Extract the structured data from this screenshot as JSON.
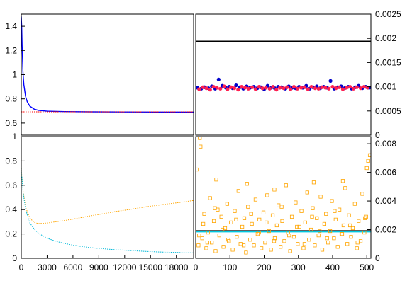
{
  "chart_data": [
    {
      "id": "top-left",
      "type": "line",
      "title": "",
      "xlabel": "",
      "ylabel": "",
      "xlim": [
        0,
        20000
      ],
      "ylim": [
        0.5,
        1.5
      ],
      "yticks": [
        0.6,
        0.8,
        1,
        1.2,
        1.4
      ],
      "ytick_labels": [
        "0.6",
        "0.8",
        "1",
        "1.2",
        "1.4"
      ],
      "grid": false,
      "series": [
        {
          "style": "solid",
          "color": "#0000ff",
          "x": [
            0,
            50,
            100,
            200,
            300,
            500,
            700,
            1000,
            1500,
            2000,
            3000,
            5000,
            8000,
            12000,
            16000,
            20000
          ],
          "y": [
            1.48,
            1.4,
            1.24,
            1.02,
            0.92,
            0.82,
            0.775,
            0.74,
            0.715,
            0.705,
            0.698,
            0.695,
            0.693,
            0.692,
            0.691,
            0.691
          ]
        },
        {
          "style": "dotted",
          "color": "#ff0000",
          "x": [
            0,
            20000
          ],
          "y": [
            0.693,
            0.693
          ]
        }
      ]
    },
    {
      "id": "top-right",
      "type": "scatter",
      "title": "",
      "xlabel": "",
      "ylabel": "",
      "xlim": [
        0,
        512
      ],
      "ylim": [
        0,
        0.0025
      ],
      "yticks": [
        0,
        0.0005,
        0.001,
        0.0015,
        0.002,
        0.0025
      ],
      "ytick_labels": [
        "0",
        "0.0005",
        "0.001",
        "0.0015",
        "0.002",
        "0.0025"
      ],
      "grid": false,
      "hline": {
        "y": 0.00194,
        "color": "#000000"
      },
      "series": [
        {
          "marker": "filled-circle",
          "color": "#0000cc",
          "x": [
            5,
            16,
            26,
            37,
            47,
            57,
            67,
            78,
            88,
            98,
            108,
            118,
            129,
            139,
            149,
            159,
            170,
            180,
            190,
            200,
            210,
            221,
            231,
            241,
            251,
            262,
            272,
            282,
            292,
            302,
            313,
            323,
            333,
            343,
            354,
            364,
            374,
            384,
            394,
            405,
            415,
            425,
            435,
            446,
            456,
            466,
            476,
            487,
            497,
            507
          ],
          "y": [
            0.00098,
            0.00096,
            0.00099,
            0.00097,
            0.00101,
            0.00096,
            0.00115,
            0.00102,
            0.00098,
            0.001,
            0.00097,
            0.00103,
            0.00099,
            0.00096,
            0.00101,
            0.00098,
            0.001,
            0.00097,
            0.00099,
            0.00095,
            0.00102,
            0.00098,
            0.00097,
            0.001,
            0.00099,
            0.00096,
            0.00101,
            0.00098,
            0.00097,
            0.001,
            0.00098,
            0.00102,
            0.00096,
            0.00099,
            0.00101,
            0.00097,
            0.001,
            0.00098,
            0.00112,
            0.00096,
            0.00099,
            0.00101,
            0.00097,
            0.001,
            0.00096,
            0.00099,
            0.00102,
            0.00097,
            0.001,
            0.00098
          ]
        },
        {
          "marker": "filled-circle",
          "color": "#ff2050",
          "x": [
            10,
            21,
            31,
            42,
            52,
            62,
            72,
            83,
            93,
            103,
            113,
            124,
            134,
            144,
            154,
            165,
            175,
            185,
            195,
            205,
            216,
            226,
            236,
            246,
            257,
            267,
            277,
            287,
            297,
            308,
            318,
            328,
            338,
            349,
            359,
            369,
            379,
            389,
            400,
            410,
            420,
            430,
            441,
            451,
            461,
            471,
            482,
            492,
            502
          ],
          "y": [
            0.00095,
            0.00099,
            0.00097,
            0.00094,
            0.001,
            0.00098,
            0.00096,
            0.00101,
            0.00095,
            0.00099,
            0.00097,
            0.00094,
            0.001,
            0.00098,
            0.00096,
            0.00099,
            0.00095,
            0.001,
            0.00097,
            0.00098,
            0.00096,
            0.001,
            0.00094,
            0.00098,
            0.00097,
            0.00099,
            0.00095,
            0.001,
            0.00096,
            0.00098,
            0.00099,
            0.00095,
            0.001,
            0.00097,
            0.00096,
            0.00099,
            0.00098,
            0.00096,
            0.001,
            0.00097,
            0.00099,
            0.00095,
            0.00098,
            0.001,
            0.00096,
            0.00099,
            0.00097,
            0.001,
            0.00098
          ]
        }
      ]
    },
    {
      "id": "bottom-left",
      "type": "line",
      "title": "",
      "xlabel": "",
      "ylabel": "",
      "xlim": [
        0,
        20000
      ],
      "ylim": [
        0,
        1
      ],
      "xticks": [
        0,
        3000,
        6000,
        9000,
        12000,
        15000,
        18000
      ],
      "xtick_labels": [
        "0",
        "3000",
        "6000",
        "9000",
        "12000",
        "15000",
        "18000"
      ],
      "yticks": [
        0,
        0.2,
        0.4,
        0.6,
        0.8,
        1
      ],
      "ytick_labels": [
        "0",
        "0.2",
        "0.4",
        "0.6",
        "0.8",
        "1"
      ],
      "grid": false,
      "series": [
        {
          "style": "dotted",
          "color": "#ffa500",
          "x": [
            0,
            200,
            500,
            1000,
            1500,
            2000,
            3000,
            4000,
            5000,
            6000,
            7000,
            8000,
            9000,
            10000,
            11000,
            12000,
            13000,
            14000,
            15000,
            16000,
            17000,
            18000,
            19000,
            20000
          ],
          "y": [
            0.74,
            0.56,
            0.42,
            0.33,
            0.295,
            0.285,
            0.29,
            0.3,
            0.31,
            0.322,
            0.335,
            0.348,
            0.36,
            0.372,
            0.385,
            0.395,
            0.405,
            0.418,
            0.428,
            0.437,
            0.447,
            0.455,
            0.465,
            0.475
          ]
        },
        {
          "style": "dotted",
          "color": "#00b8d8",
          "x": [
            0,
            200,
            500,
            1000,
            1500,
            2000,
            3000,
            4000,
            5000,
            6000,
            7000,
            8000,
            9000,
            10000,
            11000,
            12000,
            13000,
            14000,
            15000,
            16000,
            17000,
            18000,
            19000,
            20000
          ],
          "y": [
            0.74,
            0.55,
            0.4,
            0.29,
            0.24,
            0.205,
            0.165,
            0.14,
            0.122,
            0.108,
            0.097,
            0.088,
            0.081,
            0.075,
            0.07,
            0.066,
            0.062,
            0.058,
            0.055,
            0.052,
            0.05,
            0.048,
            0.046,
            0.044
          ]
        }
      ]
    },
    {
      "id": "bottom-right",
      "type": "scatter",
      "title": "",
      "xlabel": "",
      "ylabel": "",
      "xlim": [
        0,
        512
      ],
      "ylim": [
        0,
        0.0085
      ],
      "xticks": [
        0,
        100,
        200,
        300,
        400,
        500
      ],
      "xtick_labels": [
        "0",
        "100",
        "200",
        "300",
        "400",
        "500"
      ],
      "yticks": [
        0,
        0.002,
        0.004,
        0.006,
        0.008
      ],
      "ytick_labels": [
        "0",
        "0.002",
        "0.004",
        "0.006",
        "0.008"
      ],
      "grid": false,
      "hlines": [
        {
          "y": 0.00192,
          "color": "#000000"
        },
        {
          "y": 0.00185,
          "color": "#00c8e0"
        }
      ],
      "series": [
        {
          "marker": "open-square",
          "color": "#ffa500",
          "x": [
            3,
            8,
            14,
            19,
            25,
            31,
            36,
            42,
            47,
            53,
            58,
            64,
            69,
            75,
            81,
            86,
            92,
            97,
            103,
            108,
            114,
            120,
            125,
            131,
            136,
            142,
            147,
            153,
            159,
            164,
            170,
            175,
            181,
            186,
            192,
            198,
            203,
            209,
            214,
            220,
            225,
            231,
            237,
            242,
            248,
            253,
            259,
            264,
            270,
            276,
            281,
            287,
            292,
            298,
            303,
            309,
            315,
            320,
            326,
            331,
            337,
            342,
            348,
            354,
            359,
            365,
            370,
            376,
            381,
            387,
            393,
            398,
            404,
            409,
            415,
            420,
            426,
            432,
            437,
            443,
            448,
            454,
            459,
            465,
            471,
            476,
            482,
            487,
            493,
            498,
            504,
            509,
            10,
            22,
            34,
            56,
            78,
            95,
            118,
            140,
            162,
            185,
            207,
            229,
            251,
            273,
            296,
            318,
            340,
            362,
            384,
            406,
            428,
            451,
            473,
            495,
            12,
            60,
            150,
            230,
            345,
            430,
            500
          ],
          "y": [
            0.0062,
            0.0009,
            0.0078,
            0.0014,
            0.0031,
            0.0007,
            0.0018,
            0.0042,
            0.0011,
            0.0026,
            0.0005,
            0.0034,
            0.0016,
            0.0029,
            0.0008,
            0.0021,
            0.0038,
            0.0012,
            0.0025,
            0.0006,
            0.0033,
            0.0015,
            0.0047,
            0.001,
            0.0022,
            0.0028,
            0.0004,
            0.0036,
            0.0013,
            0.0024,
            0.0009,
            0.0041,
            0.0017,
            0.0027,
            0.0007,
            0.0032,
            0.0011,
            0.0044,
            0.0019,
            0.0006,
            0.003,
            0.0014,
            0.0023,
            0.0037,
            0.0008,
            0.0026,
            0.0012,
            0.0051,
            0.0018,
            0.0005,
            0.0029,
            0.0015,
            0.0039,
            0.001,
            0.0022,
            0.0033,
            0.0007,
            0.0025,
            0.0046,
            0.0013,
            0.002,
            0.0035,
            0.0009,
            0.0028,
            0.0016,
            0.0043,
            0.0006,
            0.0024,
            0.0031,
            0.0011,
            0.0019,
            0.004,
            0.0014,
            0.0027,
            0.0008,
            0.0034,
            0.0017,
            0.0023,
            0.0049,
            0.001,
            0.003,
            0.0015,
            0.0021,
            0.0038,
            0.0007,
            0.0026,
            0.0012,
            0.0045,
            0.0018,
            0.0029,
            0.0068,
            0.0072,
            0.0016,
            0.0024,
            0.0011,
            0.0035,
            0.002,
            0.0013,
            0.0027,
            0.0009,
            0.0031,
            0.0018,
            0.0025,
            0.0012,
            0.0036,
            0.0016,
            0.0022,
            0.001,
            0.0029,
            0.0019,
            0.0014,
            0.0033,
            0.0017,
            0.0023,
            0.0011,
            0.0028,
            0.0084,
            0.0055,
            0.0052,
            0.0048,
            0.0053,
            0.0054,
            0.0063
          ]
        }
      ]
    }
  ]
}
